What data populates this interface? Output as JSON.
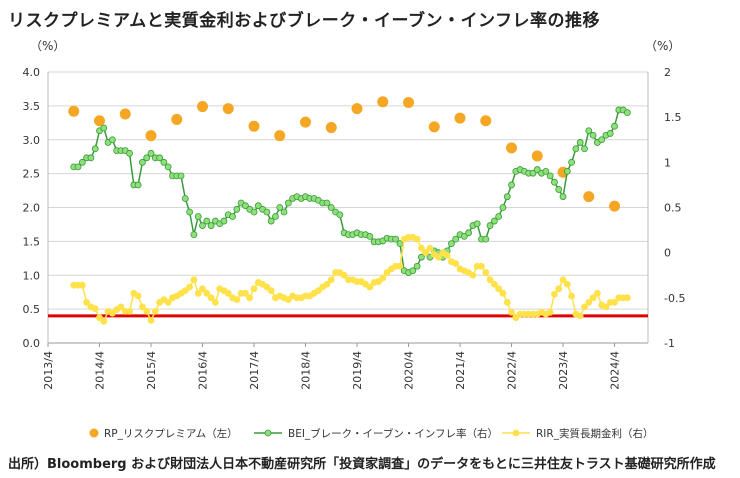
{
  "title": "リスクプレミアムと実質金利およびブレーク・イーブン・インフレ率の推移",
  "source": "出所）Bloomberg および財団法人日本不動産研究所「投資家調査」のデータをもとに三井住友トラスト基礎研究所作成",
  "chart_data": {
    "type": "line",
    "left_axis": {
      "unit_label": "（%）",
      "ylim": [
        0,
        4
      ],
      "ticks": [
        "4.0",
        "3.5",
        "3.0",
        "2.5",
        "2.0",
        "1.5",
        "1.0",
        "0.5",
        "0.0"
      ]
    },
    "right_axis": {
      "unit_label": "（%）",
      "ylim": [
        -1,
        2
      ],
      "ticks": [
        "2",
        "1.5",
        "1",
        "0.5",
        "0",
        "-0.5",
        "-1"
      ]
    },
    "x_ticks": [
      "2013/4",
      "2014/4",
      "2015/4",
      "2016/4",
      "2017/4",
      "2018/4",
      "2019/4",
      "2020/4",
      "2021/4",
      "2022/4",
      "2023/4",
      "2024/4"
    ],
    "grid": "horizontal",
    "reference_line": {
      "axis": "left",
      "value": 0.4,
      "color": "#e00000"
    },
    "legend_position": "bottom",
    "series": [
      {
        "name": "RP_リスクプレミアム（左）",
        "axis": "left",
        "style": "scatter",
        "color": "#f5a623",
        "points": [
          [
            "2013-10",
            3.42
          ],
          [
            "2014-04",
            3.28
          ],
          [
            "2014-10",
            3.38
          ],
          [
            "2015-04",
            3.06
          ],
          [
            "2015-10",
            3.3
          ],
          [
            "2016-04",
            3.49
          ],
          [
            "2016-10",
            3.46
          ],
          [
            "2017-04",
            3.2
          ],
          [
            "2017-10",
            3.06
          ],
          [
            "2018-04",
            3.26
          ],
          [
            "2018-10",
            3.18
          ],
          [
            "2019-04",
            3.46
          ],
          [
            "2019-10",
            3.56
          ],
          [
            "2020-04",
            3.55
          ],
          [
            "2020-10",
            3.19
          ],
          [
            "2021-04",
            3.32
          ],
          [
            "2021-10",
            3.28
          ],
          [
            "2022-04",
            2.88
          ],
          [
            "2022-10",
            2.76
          ],
          [
            "2023-04",
            2.52
          ],
          [
            "2023-10",
            2.16
          ],
          [
            "2024-04",
            2.02
          ]
        ]
      },
      {
        "name": "BEI_ブレーク・イーブン・インフレ率（右）",
        "axis": "right",
        "style": "line-markers",
        "color": "#3a9a3a",
        "marker_color": "#8ee07a",
        "points": [
          [
            "2013-10",
            0.95
          ],
          [
            "2013-11",
            0.95
          ],
          [
            "2013-12",
            1.0
          ],
          [
            "2014-01",
            1.05
          ],
          [
            "2014-02",
            1.05
          ],
          [
            "2014-03",
            1.15
          ],
          [
            "2014-04",
            1.35
          ],
          [
            "2014-05",
            1.38
          ],
          [
            "2014-06",
            1.22
          ],
          [
            "2014-07",
            1.25
          ],
          [
            "2014-08",
            1.13
          ],
          [
            "2014-09",
            1.13
          ],
          [
            "2014-10",
            1.13
          ],
          [
            "2014-11",
            1.1
          ],
          [
            "2014-12",
            0.75
          ],
          [
            "2015-01",
            0.75
          ],
          [
            "2015-02",
            1.0
          ],
          [
            "2015-03",
            1.05
          ],
          [
            "2015-04",
            1.1
          ],
          [
            "2015-05",
            1.05
          ],
          [
            "2015-06",
            1.05
          ],
          [
            "2015-07",
            1.0
          ],
          [
            "2015-08",
            0.95
          ],
          [
            "2015-09",
            0.85
          ],
          [
            "2015-10",
            0.85
          ],
          [
            "2015-11",
            0.85
          ],
          [
            "2015-12",
            0.6
          ],
          [
            "2016-01",
            0.45
          ],
          [
            "2016-02",
            0.2
          ],
          [
            "2016-03",
            0.4
          ],
          [
            "2016-04",
            0.3
          ],
          [
            "2016-05",
            0.35
          ],
          [
            "2016-06",
            0.3
          ],
          [
            "2016-07",
            0.35
          ],
          [
            "2016-08",
            0.32
          ],
          [
            "2016-09",
            0.35
          ],
          [
            "2016-10",
            0.42
          ],
          [
            "2016-11",
            0.4
          ],
          [
            "2016-12",
            0.48
          ],
          [
            "2017-01",
            0.55
          ],
          [
            "2017-02",
            0.52
          ],
          [
            "2017-03",
            0.48
          ],
          [
            "2017-04",
            0.45
          ],
          [
            "2017-05",
            0.52
          ],
          [
            "2017-06",
            0.48
          ],
          [
            "2017-07",
            0.45
          ],
          [
            "2017-08",
            0.35
          ],
          [
            "2017-09",
            0.4
          ],
          [
            "2017-10",
            0.5
          ],
          [
            "2017-11",
            0.45
          ],
          [
            "2017-12",
            0.55
          ],
          [
            "2018-01",
            0.6
          ],
          [
            "2018-02",
            0.62
          ],
          [
            "2018-03",
            0.6
          ],
          [
            "2018-04",
            0.62
          ],
          [
            "2018-05",
            0.6
          ],
          [
            "2018-06",
            0.6
          ],
          [
            "2018-07",
            0.58
          ],
          [
            "2018-08",
            0.55
          ],
          [
            "2018-09",
            0.55
          ],
          [
            "2018-10",
            0.5
          ],
          [
            "2018-11",
            0.45
          ],
          [
            "2018-12",
            0.42
          ],
          [
            "2019-01",
            0.22
          ],
          [
            "2019-02",
            0.2
          ],
          [
            "2019-03",
            0.2
          ],
          [
            "2019-04",
            0.22
          ],
          [
            "2019-05",
            0.2
          ],
          [
            "2019-06",
            0.2
          ],
          [
            "2019-07",
            0.18
          ],
          [
            "2019-08",
            0.12
          ],
          [
            "2019-09",
            0.12
          ],
          [
            "2019-10",
            0.13
          ],
          [
            "2019-11",
            0.16
          ],
          [
            "2019-12",
            0.15
          ],
          [
            "2020-01",
            0.15
          ],
          [
            "2020-02",
            0.1
          ],
          [
            "2020-03",
            -0.2
          ],
          [
            "2020-04",
            -0.22
          ],
          [
            "2020-05",
            -0.2
          ],
          [
            "2020-06",
            -0.15
          ],
          [
            "2020-07",
            -0.05
          ],
          [
            "2020-08",
            0.0
          ],
          [
            "2020-09",
            -0.05
          ],
          [
            "2020-10",
            0.02
          ],
          [
            "2020-11",
            0.0
          ],
          [
            "2020-12",
            -0.05
          ],
          [
            "2021-01",
            0.02
          ],
          [
            "2021-02",
            0.1
          ],
          [
            "2021-03",
            0.15
          ],
          [
            "2021-04",
            0.2
          ],
          [
            "2021-05",
            0.18
          ],
          [
            "2021-06",
            0.22
          ],
          [
            "2021-07",
            0.3
          ],
          [
            "2021-08",
            0.32
          ],
          [
            "2021-09",
            0.15
          ],
          [
            "2021-10",
            0.15
          ],
          [
            "2021-11",
            0.3
          ],
          [
            "2021-12",
            0.35
          ],
          [
            "2022-01",
            0.4
          ],
          [
            "2022-02",
            0.5
          ],
          [
            "2022-03",
            0.62
          ],
          [
            "2022-04",
            0.75
          ],
          [
            "2022-05",
            0.9
          ],
          [
            "2022-06",
            0.92
          ],
          [
            "2022-07",
            0.9
          ],
          [
            "2022-08",
            0.88
          ],
          [
            "2022-09",
            0.88
          ],
          [
            "2022-10",
            0.92
          ],
          [
            "2022-11",
            0.88
          ],
          [
            "2022-12",
            0.9
          ],
          [
            "2023-01",
            0.85
          ],
          [
            "2023-02",
            0.78
          ],
          [
            "2023-03",
            0.7
          ],
          [
            "2023-04",
            0.62
          ],
          [
            "2023-05",
            0.9
          ],
          [
            "2023-06",
            1.0
          ],
          [
            "2023-07",
            1.15
          ],
          [
            "2023-08",
            1.22
          ],
          [
            "2023-09",
            1.15
          ],
          [
            "2023-10",
            1.35
          ],
          [
            "2023-11",
            1.3
          ],
          [
            "2023-12",
            1.22
          ],
          [
            "2024-01",
            1.25
          ],
          [
            "2024-02",
            1.3
          ],
          [
            "2024-03",
            1.32
          ],
          [
            "2024-04",
            1.4
          ],
          [
            "2024-05",
            1.58
          ],
          [
            "2024-06",
            1.58
          ],
          [
            "2024-07",
            1.55
          ]
        ]
      },
      {
        "name": "RIR_実質長期金利（右）",
        "axis": "right",
        "style": "line-markers",
        "color": "#ffe14a",
        "marker_color": "#ffe14a",
        "points": [
          [
            "2013-10",
            -0.36
          ],
          [
            "2013-11",
            -0.36
          ],
          [
            "2013-12",
            -0.36
          ],
          [
            "2014-01",
            -0.55
          ],
          [
            "2014-02",
            -0.6
          ],
          [
            "2014-03",
            -0.62
          ],
          [
            "2014-04",
            -0.72
          ],
          [
            "2014-05",
            -0.76
          ],
          [
            "2014-06",
            -0.65
          ],
          [
            "2014-07",
            -0.67
          ],
          [
            "2014-08",
            -0.63
          ],
          [
            "2014-09",
            -0.6
          ],
          [
            "2014-10",
            -0.65
          ],
          [
            "2014-11",
            -0.65
          ],
          [
            "2014-12",
            -0.45
          ],
          [
            "2015-01",
            -0.48
          ],
          [
            "2015-02",
            -0.6
          ],
          [
            "2015-03",
            -0.65
          ],
          [
            "2015-04",
            -0.75
          ],
          [
            "2015-05",
            -0.65
          ],
          [
            "2015-06",
            -0.55
          ],
          [
            "2015-07",
            -0.52
          ],
          [
            "2015-08",
            -0.55
          ],
          [
            "2015-09",
            -0.5
          ],
          [
            "2015-10",
            -0.48
          ],
          [
            "2015-11",
            -0.45
          ],
          [
            "2015-12",
            -0.42
          ],
          [
            "2016-01",
            -0.38
          ],
          [
            "2016-02",
            -0.3
          ],
          [
            "2016-03",
            -0.45
          ],
          [
            "2016-04",
            -0.4
          ],
          [
            "2016-05",
            -0.45
          ],
          [
            "2016-06",
            -0.5
          ],
          [
            "2016-07",
            -0.55
          ],
          [
            "2016-08",
            -0.4
          ],
          [
            "2016-09",
            -0.42
          ],
          [
            "2016-10",
            -0.45
          ],
          [
            "2016-11",
            -0.5
          ],
          [
            "2016-12",
            -0.52
          ],
          [
            "2017-01",
            -0.45
          ],
          [
            "2017-02",
            -0.45
          ],
          [
            "2017-03",
            -0.5
          ],
          [
            "2017-04",
            -0.4
          ],
          [
            "2017-05",
            -0.33
          ],
          [
            "2017-06",
            -0.35
          ],
          [
            "2017-07",
            -0.38
          ],
          [
            "2017-08",
            -0.42
          ],
          [
            "2017-09",
            -0.5
          ],
          [
            "2017-10",
            -0.48
          ],
          [
            "2017-11",
            -0.5
          ],
          [
            "2017-12",
            -0.52
          ],
          [
            "2018-01",
            -0.48
          ],
          [
            "2018-02",
            -0.5
          ],
          [
            "2018-03",
            -0.5
          ],
          [
            "2018-04",
            -0.48
          ],
          [
            "2018-05",
            -0.48
          ],
          [
            "2018-06",
            -0.45
          ],
          [
            "2018-07",
            -0.42
          ],
          [
            "2018-08",
            -0.38
          ],
          [
            "2018-09",
            -0.35
          ],
          [
            "2018-10",
            -0.3
          ],
          [
            "2018-11",
            -0.22
          ],
          [
            "2018-12",
            -0.22
          ],
          [
            "2019-01",
            -0.25
          ],
          [
            "2019-02",
            -0.3
          ],
          [
            "2019-03",
            -0.3
          ],
          [
            "2019-04",
            -0.32
          ],
          [
            "2019-05",
            -0.32
          ],
          [
            "2019-06",
            -0.35
          ],
          [
            "2019-07",
            -0.38
          ],
          [
            "2019-08",
            -0.33
          ],
          [
            "2019-09",
            -0.32
          ],
          [
            "2019-10",
            -0.28
          ],
          [
            "2019-11",
            -0.22
          ],
          [
            "2019-12",
            -0.18
          ],
          [
            "2020-01",
            -0.15
          ],
          [
            "2020-02",
            -0.15
          ],
          [
            "2020-03",
            0.15
          ],
          [
            "2020-04",
            0.17
          ],
          [
            "2020-05",
            0.17
          ],
          [
            "2020-06",
            0.15
          ],
          [
            "2020-07",
            0.05
          ],
          [
            "2020-08",
            0.0
          ],
          [
            "2020-09",
            0.05
          ],
          [
            "2020-10",
            -0.02
          ],
          [
            "2020-11",
            -0.05
          ],
          [
            "2020-12",
            0.0
          ],
          [
            "2021-01",
            -0.03
          ],
          [
            "2021-02",
            -0.1
          ],
          [
            "2021-03",
            -0.12
          ],
          [
            "2021-04",
            -0.18
          ],
          [
            "2021-05",
            -0.2
          ],
          [
            "2021-06",
            -0.22
          ],
          [
            "2021-07",
            -0.25
          ],
          [
            "2021-08",
            -0.15
          ],
          [
            "2021-09",
            -0.15
          ],
          [
            "2021-10",
            -0.22
          ],
          [
            "2021-11",
            -0.3
          ],
          [
            "2021-12",
            -0.35
          ],
          [
            "2022-01",
            -0.4
          ],
          [
            "2022-02",
            -0.45
          ],
          [
            "2022-03",
            -0.55
          ],
          [
            "2022-04",
            -0.66
          ],
          [
            "2022-05",
            -0.72
          ],
          [
            "2022-06",
            -0.68
          ],
          [
            "2022-07",
            -0.68
          ],
          [
            "2022-08",
            -0.68
          ],
          [
            "2022-09",
            -0.68
          ],
          [
            "2022-10",
            -0.68
          ],
          [
            "2022-11",
            -0.66
          ],
          [
            "2022-12",
            -0.68
          ],
          [
            "2023-01",
            -0.66
          ],
          [
            "2023-02",
            -0.46
          ],
          [
            "2023-03",
            -0.4
          ],
          [
            "2023-04",
            -0.3
          ],
          [
            "2023-05",
            -0.35
          ],
          [
            "2023-06",
            -0.48
          ],
          [
            "2023-07",
            -0.68
          ],
          [
            "2023-08",
            -0.7
          ],
          [
            "2023-09",
            -0.6
          ],
          [
            "2023-10",
            -0.55
          ],
          [
            "2023-11",
            -0.5
          ],
          [
            "2023-12",
            -0.45
          ],
          [
            "2024-01",
            -0.58
          ],
          [
            "2024-02",
            -0.6
          ],
          [
            "2024-03",
            -0.55
          ],
          [
            "2024-04",
            -0.55
          ],
          [
            "2024-05",
            -0.5
          ],
          [
            "2024-06",
            -0.5
          ],
          [
            "2024-07",
            -0.5
          ]
        ]
      }
    ]
  }
}
